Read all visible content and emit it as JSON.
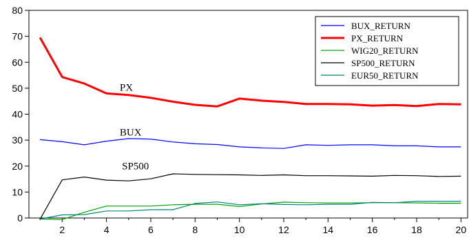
{
  "chart_data": {
    "type": "line",
    "title": "",
    "xlabel": "",
    "ylabel": "",
    "x": [
      1,
      2,
      3,
      4,
      5,
      6,
      7,
      8,
      9,
      10,
      11,
      12,
      13,
      14,
      15,
      16,
      17,
      18,
      19,
      20
    ],
    "xlim": [
      0.5,
      20.3
    ],
    "ylim": [
      0,
      80
    ],
    "xticks": [
      2,
      4,
      6,
      8,
      10,
      12,
      14,
      16,
      18,
      20
    ],
    "xtick_labels": [
      "2",
      "4",
      "6",
      "8",
      "10",
      "12",
      "14",
      "16",
      "18",
      "20"
    ],
    "yticks": [
      0,
      10,
      20,
      30,
      40,
      50,
      60,
      70,
      80
    ],
    "ytick_labels": [
      "0",
      "10",
      "20",
      "30",
      "40",
      "50",
      "60",
      "70",
      "80"
    ],
    "grid": false,
    "legend_position": "top-right",
    "series": [
      {
        "name": "BUX_RETURN",
        "color": "#0000ff",
        "values": [
          30.2,
          29.4,
          28.2,
          29.6,
          30.6,
          30.4,
          29.3,
          28.6,
          28.3,
          27.4,
          27.0,
          26.8,
          28.2,
          28.0,
          28.2,
          28.2,
          27.8,
          27.8,
          27.4,
          27.4
        ]
      },
      {
        "name": "PX_RETURN",
        "color": "#ff0000",
        "values": [
          69.5,
          54.3,
          51.8,
          48.0,
          47.4,
          46.3,
          44.8,
          43.6,
          43.0,
          46.0,
          45.2,
          44.7,
          43.9,
          43.9,
          43.8,
          43.3,
          43.5,
          43.1,
          43.9,
          43.8
        ]
      },
      {
        "name": "WIG20_RETURN",
        "color": "#00a000",
        "values": [
          -0.4,
          -0.6,
          2.2,
          4.6,
          4.6,
          4.6,
          5.1,
          5.3,
          5.3,
          4.4,
          5.4,
          6.1,
          5.9,
          5.8,
          5.8,
          5.9,
          5.9,
          5.8,
          5.7,
          5.7
        ]
      },
      {
        "name": "SP500_RETURN",
        "color": "#000000",
        "values": [
          -0.5,
          14.7,
          15.8,
          14.6,
          14.3,
          15.1,
          17.0,
          16.8,
          16.7,
          16.6,
          16.4,
          16.6,
          16.3,
          16.3,
          16.2,
          16.1,
          16.4,
          16.3,
          16.0,
          16.1
        ]
      },
      {
        "name": "EUR50_RETURN",
        "color": "#008080",
        "values": [
          -0.4,
          1.2,
          1.3,
          2.7,
          2.7,
          3.2,
          3.2,
          5.6,
          6.2,
          5.1,
          5.5,
          5.2,
          5.1,
          5.3,
          5.3,
          6.0,
          5.9,
          6.4,
          6.4,
          6.4
        ]
      }
    ],
    "annotations": [
      {
        "text": "PX",
        "x": 4.6,
        "y": 49.0
      },
      {
        "text": "BUX",
        "x": 4.6,
        "y": 31.7
      },
      {
        "text": "SP500",
        "x": 4.7,
        "y": 18.7
      }
    ]
  }
}
